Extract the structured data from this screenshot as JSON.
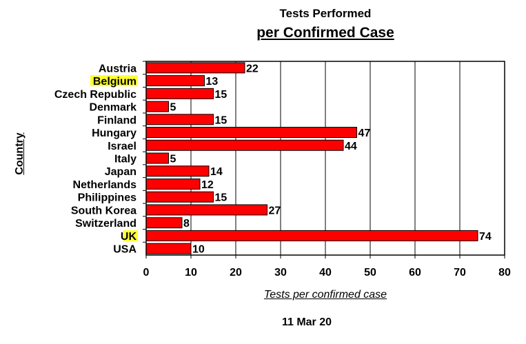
{
  "chart_data": {
    "type": "bar",
    "orientation": "horizontal",
    "title": "Tests Performed",
    "subtitle": "per Confirmed Case",
    "xlabel": "Tests per confirmed case",
    "ylabel": "Country",
    "footer": "11 Mar 20",
    "categories": [
      "Austria",
      "Belgium",
      "Czech Republic",
      "Denmark",
      "Finland",
      "Hungary",
      "Israel",
      "Italy",
      "Japan",
      "Netherlands",
      "Philippines",
      "South Korea",
      "Switzerland",
      "UK",
      "USA"
    ],
    "values": [
      22,
      13,
      15,
      5,
      15,
      47,
      44,
      5,
      14,
      12,
      15,
      27,
      8,
      74,
      10
    ],
    "highlighted": [
      "Belgium",
      "UK"
    ],
    "xlim": [
      0,
      80
    ],
    "xticks": [
      0,
      10,
      20,
      30,
      40,
      50,
      60,
      70,
      80
    ],
    "grid": "vertical",
    "bar_color": "#ff0000",
    "highlight_color": "#ffff33"
  }
}
